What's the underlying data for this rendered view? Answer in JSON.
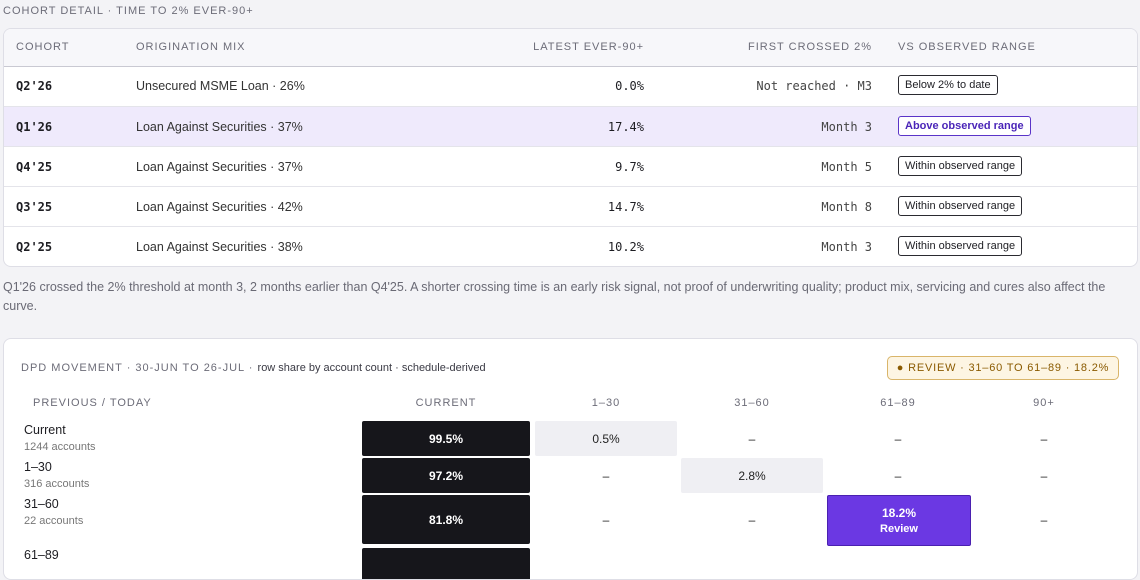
{
  "cohort": {
    "title": "COHORT DETAIL · TIME TO 2% EVER-90+",
    "headers": [
      "COHORT",
      "ORIGINATION MIX",
      "LATEST EVER-90+",
      "FIRST CROSSED 2%",
      "VS OBSERVED RANGE"
    ],
    "rows": [
      {
        "cohort": "Q2'26",
        "mix": "Unsecured MSME Loan · 26%",
        "latest": "0.0%",
        "first": "Not reached · M3",
        "range": "Below 2% to date"
      },
      {
        "cohort": "Q1'26",
        "mix": "Loan Against Securities · 37%",
        "latest": "17.4%",
        "first": "Month 3",
        "range": "Above observed range",
        "highlight": true
      },
      {
        "cohort": "Q4'25",
        "mix": "Loan Against Securities · 37%",
        "latest": "9.7%",
        "first": "Month 5",
        "range": "Within observed range"
      },
      {
        "cohort": "Q3'25",
        "mix": "Loan Against Securities · 42%",
        "latest": "14.7%",
        "first": "Month 8",
        "range": "Within observed range"
      },
      {
        "cohort": "Q2'25",
        "mix": "Loan Against Securities · 38%",
        "latest": "10.2%",
        "first": "Month 3",
        "range": "Within observed range"
      }
    ],
    "note": "Q1'26 crossed the 2% threshold at month 3, 2 months earlier than Q4'25. A shorter crossing time is an early risk signal, not proof of underwriting quality; product mix, servicing and cures also affect the curve."
  },
  "dpd": {
    "title": "DPD MOVEMENT · 30-JUN TO 26-JUL",
    "subtitle": "row share by account count · schedule-derived",
    "badge": "● REVIEW · 31–60 TO 61–89 · 18.2%",
    "headers": [
      "PREVIOUS / TODAY",
      "CURRENT",
      "1–30",
      "31–60",
      "61–89",
      "90+"
    ],
    "rows": [
      {
        "label": "Current",
        "accounts": "1244 accounts",
        "cells": [
          {
            "text": "99.5%",
            "color": "#16161b"
          },
          {
            "text": "0.5%",
            "color": "#efeff3"
          },
          {
            "text": "–"
          },
          {
            "text": "–"
          },
          {
            "text": "–"
          }
        ]
      },
      {
        "label": "1–30",
        "accounts": "316 accounts",
        "cells": [
          {
            "text": "97.2%",
            "color": "#16161b"
          },
          {
            "text": "–"
          },
          {
            "text": "2.8%",
            "color": "#efeff3"
          },
          {
            "text": "–"
          },
          {
            "text": "–"
          }
        ]
      },
      {
        "label": "31–60",
        "accounts": "22 accounts",
        "cells": [
          {
            "text": "81.8%",
            "color": "#16161b"
          },
          {
            "text": "–"
          },
          {
            "text": "–"
          },
          {
            "text": "18.2%",
            "sub": "Review",
            "color": "#6b38e3"
          },
          {
            "text": "–"
          }
        ]
      },
      {
        "label": "61–89"
      }
    ]
  }
}
